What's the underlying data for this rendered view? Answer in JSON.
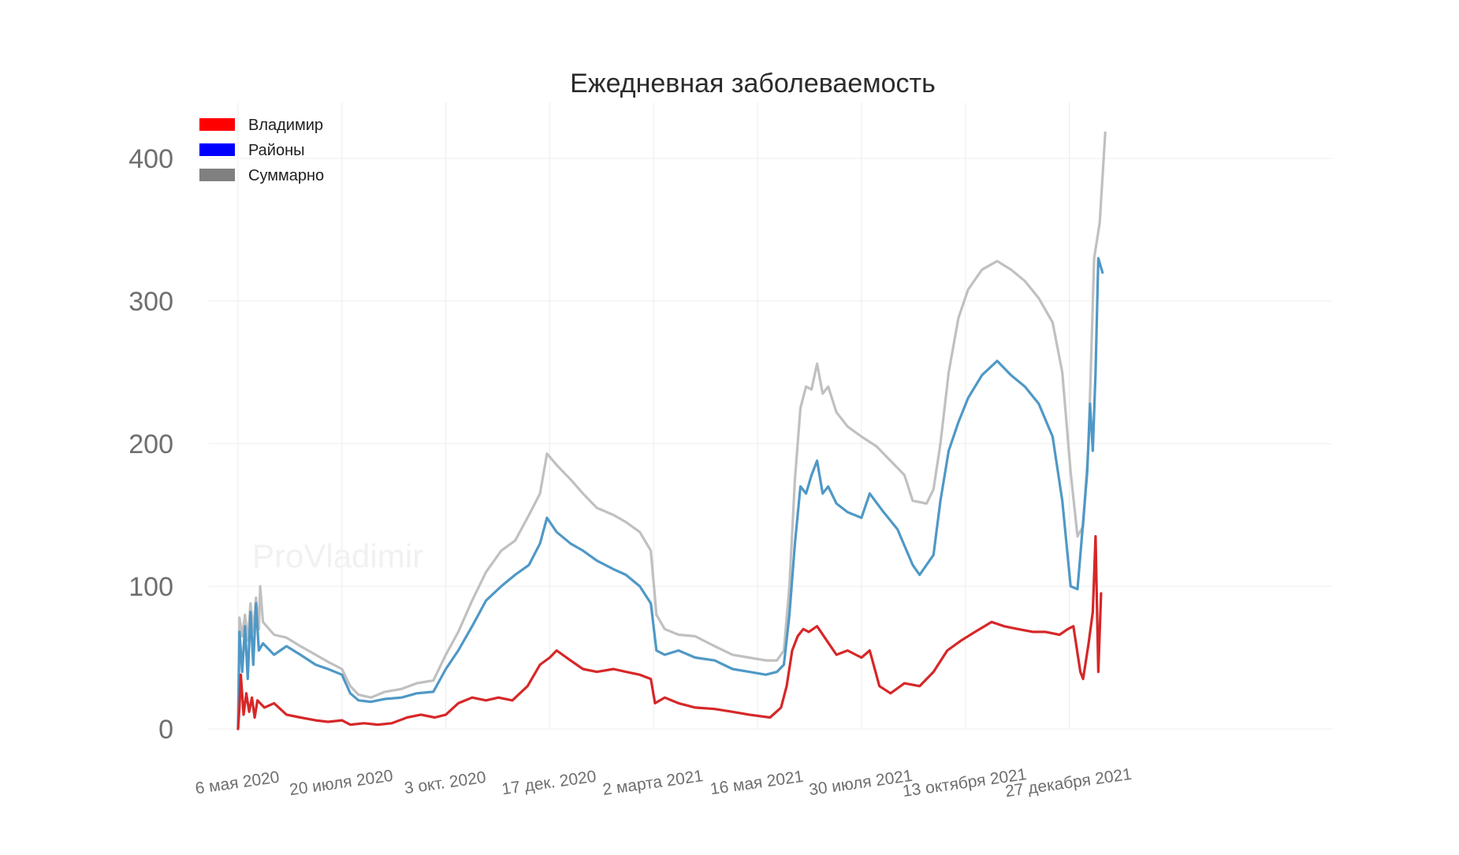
{
  "chart_data": {
    "type": "line",
    "title": "Ежедневная заболеваемость",
    "watermark": "ProVladimir",
    "xlabel": "",
    "ylabel": "",
    "ylim": [
      0,
      420
    ],
    "yticks": [
      0,
      100,
      200,
      300,
      400
    ],
    "xlim": [
      "2020-05-06",
      "2022-01-24"
    ],
    "xticks": [
      {
        "date": "2020-05-06",
        "label": "6 мая 2020"
      },
      {
        "date": "2020-07-20",
        "label": "20 июля 2020"
      },
      {
        "date": "2020-10-03",
        "label": "3 окт. 2020"
      },
      {
        "date": "2020-12-17",
        "label": "17 дек. 2020"
      },
      {
        "date": "2021-03-02",
        "label": "2 марта 2021"
      },
      {
        "date": "2021-05-16",
        "label": "16 мая 2021"
      },
      {
        "date": "2021-07-30",
        "label": "30 июля 2021"
      },
      {
        "date": "2021-10-13",
        "label": "13 октября 2021"
      },
      {
        "date": "2021-12-27",
        "label": "27 декабря 2021"
      }
    ],
    "grid": true,
    "legend_position": "top-left",
    "legend": [
      {
        "name": "Владимир",
        "swatch_color": "#ff0000"
      },
      {
        "name": "Районы",
        "swatch_color": "#0000ff"
      },
      {
        "name": "Суммарно",
        "swatch_color": "#808080"
      }
    ],
    "series": [
      {
        "name": "Суммарно",
        "color": "#c0c0c0",
        "points": [
          [
            "2020-05-06",
            0
          ],
          [
            "2020-05-07",
            78
          ],
          [
            "2020-05-09",
            65
          ],
          [
            "2020-05-11",
            80
          ],
          [
            "2020-05-13",
            62
          ],
          [
            "2020-05-15",
            88
          ],
          [
            "2020-05-17",
            68
          ],
          [
            "2020-05-19",
            92
          ],
          [
            "2020-05-21",
            70
          ],
          [
            "2020-05-22",
            100
          ],
          [
            "2020-05-24",
            75
          ],
          [
            "2020-06-01",
            66
          ],
          [
            "2020-06-10",
            64
          ],
          [
            "2020-06-20",
            58
          ],
          [
            "2020-07-01",
            52
          ],
          [
            "2020-07-10",
            47
          ],
          [
            "2020-07-20",
            42
          ],
          [
            "2020-07-26",
            30
          ],
          [
            "2020-08-01",
            24
          ],
          [
            "2020-08-10",
            22
          ],
          [
            "2020-08-20",
            26
          ],
          [
            "2020-09-01",
            28
          ],
          [
            "2020-09-12",
            32
          ],
          [
            "2020-09-24",
            34
          ],
          [
            "2020-10-03",
            52
          ],
          [
            "2020-10-12",
            68
          ],
          [
            "2020-10-22",
            90
          ],
          [
            "2020-11-01",
            110
          ],
          [
            "2020-11-12",
            125
          ],
          [
            "2020-11-22",
            132
          ],
          [
            "2020-12-02",
            150
          ],
          [
            "2020-12-10",
            165
          ],
          [
            "2020-12-15",
            193
          ],
          [
            "2020-12-22",
            185
          ],
          [
            "2021-01-01",
            175
          ],
          [
            "2021-01-10",
            165
          ],
          [
            "2021-01-20",
            155
          ],
          [
            "2021-02-01",
            150
          ],
          [
            "2021-02-10",
            145
          ],
          [
            "2021-02-20",
            138
          ],
          [
            "2021-02-28",
            125
          ],
          [
            "2021-03-04",
            80
          ],
          [
            "2021-03-10",
            70
          ],
          [
            "2021-03-20",
            66
          ],
          [
            "2021-04-01",
            65
          ],
          [
            "2021-04-15",
            58
          ],
          [
            "2021-04-28",
            52
          ],
          [
            "2021-05-10",
            50
          ],
          [
            "2021-05-22",
            48
          ],
          [
            "2021-05-30",
            48
          ],
          [
            "2021-06-04",
            55
          ],
          [
            "2021-06-08",
            100
          ],
          [
            "2021-06-12",
            175
          ],
          [
            "2021-06-16",
            225
          ],
          [
            "2021-06-20",
            240
          ],
          [
            "2021-06-24",
            238
          ],
          [
            "2021-06-28",
            256
          ],
          [
            "2021-07-02",
            235
          ],
          [
            "2021-07-06",
            240
          ],
          [
            "2021-07-12",
            222
          ],
          [
            "2021-07-20",
            212
          ],
          [
            "2021-07-30",
            205
          ],
          [
            "2021-08-10",
            198
          ],
          [
            "2021-08-20",
            188
          ],
          [
            "2021-08-30",
            178
          ],
          [
            "2021-09-05",
            160
          ],
          [
            "2021-09-15",
            158
          ],
          [
            "2021-09-20",
            168
          ],
          [
            "2021-09-25",
            200
          ],
          [
            "2021-10-01",
            250
          ],
          [
            "2021-10-08",
            288
          ],
          [
            "2021-10-15",
            308
          ],
          [
            "2021-10-25",
            322
          ],
          [
            "2021-11-05",
            328
          ],
          [
            "2021-11-15",
            322
          ],
          [
            "2021-11-25",
            314
          ],
          [
            "2021-12-05",
            302
          ],
          [
            "2021-12-15",
            285
          ],
          [
            "2021-12-22",
            250
          ],
          [
            "2021-12-28",
            180
          ],
          [
            "2022-01-02",
            135
          ],
          [
            "2022-01-06",
            142
          ],
          [
            "2022-01-10",
            200
          ],
          [
            "2022-01-14",
            330
          ],
          [
            "2022-01-18",
            355
          ],
          [
            "2022-01-22",
            418
          ]
        ]
      },
      {
        "name": "Районы",
        "color": "#4f98c6",
        "points": [
          [
            "2020-05-06",
            0
          ],
          [
            "2020-05-07",
            68
          ],
          [
            "2020-05-09",
            40
          ],
          [
            "2020-05-11",
            72
          ],
          [
            "2020-05-13",
            35
          ],
          [
            "2020-05-15",
            82
          ],
          [
            "2020-05-17",
            45
          ],
          [
            "2020-05-19",
            88
          ],
          [
            "2020-05-21",
            55
          ],
          [
            "2020-05-24",
            60
          ],
          [
            "2020-06-01",
            52
          ],
          [
            "2020-06-10",
            58
          ],
          [
            "2020-06-20",
            52
          ],
          [
            "2020-07-01",
            45
          ],
          [
            "2020-07-10",
            42
          ],
          [
            "2020-07-20",
            38
          ],
          [
            "2020-07-26",
            25
          ],
          [
            "2020-08-01",
            20
          ],
          [
            "2020-08-10",
            19
          ],
          [
            "2020-08-20",
            21
          ],
          [
            "2020-09-01",
            22
          ],
          [
            "2020-09-12",
            25
          ],
          [
            "2020-09-24",
            26
          ],
          [
            "2020-10-03",
            42
          ],
          [
            "2020-10-12",
            55
          ],
          [
            "2020-10-22",
            72
          ],
          [
            "2020-11-01",
            90
          ],
          [
            "2020-11-12",
            100
          ],
          [
            "2020-11-22",
            108
          ],
          [
            "2020-12-02",
            115
          ],
          [
            "2020-12-10",
            130
          ],
          [
            "2020-12-15",
            148
          ],
          [
            "2020-12-22",
            138
          ],
          [
            "2021-01-01",
            130
          ],
          [
            "2021-01-10",
            125
          ],
          [
            "2021-01-20",
            118
          ],
          [
            "2021-02-01",
            112
          ],
          [
            "2021-02-10",
            108
          ],
          [
            "2021-02-20",
            100
          ],
          [
            "2021-02-28",
            88
          ],
          [
            "2021-03-04",
            55
          ],
          [
            "2021-03-10",
            52
          ],
          [
            "2021-03-20",
            55
          ],
          [
            "2021-04-01",
            50
          ],
          [
            "2021-04-15",
            48
          ],
          [
            "2021-04-28",
            42
          ],
          [
            "2021-05-10",
            40
          ],
          [
            "2021-05-22",
            38
          ],
          [
            "2021-05-30",
            40
          ],
          [
            "2021-06-04",
            45
          ],
          [
            "2021-06-08",
            80
          ],
          [
            "2021-06-12",
            130
          ],
          [
            "2021-06-16",
            170
          ],
          [
            "2021-06-20",
            165
          ],
          [
            "2021-06-24",
            178
          ],
          [
            "2021-06-28",
            188
          ],
          [
            "2021-07-02",
            165
          ],
          [
            "2021-07-06",
            170
          ],
          [
            "2021-07-12",
            158
          ],
          [
            "2021-07-20",
            152
          ],
          [
            "2021-07-30",
            148
          ],
          [
            "2021-08-05",
            165
          ],
          [
            "2021-08-15",
            152
          ],
          [
            "2021-08-25",
            140
          ],
          [
            "2021-09-05",
            115
          ],
          [
            "2021-09-10",
            108
          ],
          [
            "2021-09-20",
            122
          ],
          [
            "2021-09-25",
            160
          ],
          [
            "2021-10-01",
            195
          ],
          [
            "2021-10-08",
            215
          ],
          [
            "2021-10-15",
            232
          ],
          [
            "2021-10-25",
            248
          ],
          [
            "2021-11-05",
            258
          ],
          [
            "2021-11-15",
            248
          ],
          [
            "2021-11-25",
            240
          ],
          [
            "2021-12-05",
            228
          ],
          [
            "2021-12-15",
            205
          ],
          [
            "2021-12-22",
            160
          ],
          [
            "2021-12-28",
            100
          ],
          [
            "2022-01-02",
            98
          ],
          [
            "2022-01-06",
            145
          ],
          [
            "2022-01-09",
            180
          ],
          [
            "2022-01-11",
            228
          ],
          [
            "2022-01-13",
            195
          ],
          [
            "2022-01-15",
            250
          ],
          [
            "2022-01-17",
            330
          ],
          [
            "2022-01-20",
            320
          ]
        ]
      },
      {
        "name": "Владимир",
        "color": "#d62728",
        "points": [
          [
            "2020-05-06",
            0
          ],
          [
            "2020-05-07",
            15
          ],
          [
            "2020-05-08",
            38
          ],
          [
            "2020-05-10",
            10
          ],
          [
            "2020-05-12",
            25
          ],
          [
            "2020-05-14",
            12
          ],
          [
            "2020-05-16",
            22
          ],
          [
            "2020-05-18",
            8
          ],
          [
            "2020-05-20",
            20
          ],
          [
            "2020-05-25",
            15
          ],
          [
            "2020-06-01",
            18
          ],
          [
            "2020-06-10",
            10
          ],
          [
            "2020-06-20",
            8
          ],
          [
            "2020-07-01",
            6
          ],
          [
            "2020-07-10",
            5
          ],
          [
            "2020-07-20",
            6
          ],
          [
            "2020-07-26",
            3
          ],
          [
            "2020-08-05",
            4
          ],
          [
            "2020-08-15",
            3
          ],
          [
            "2020-08-25",
            4
          ],
          [
            "2020-09-05",
            8
          ],
          [
            "2020-09-15",
            10
          ],
          [
            "2020-09-25",
            8
          ],
          [
            "2020-10-03",
            10
          ],
          [
            "2020-10-12",
            18
          ],
          [
            "2020-10-22",
            22
          ],
          [
            "2020-11-01",
            20
          ],
          [
            "2020-11-10",
            22
          ],
          [
            "2020-11-20",
            20
          ],
          [
            "2020-12-01",
            30
          ],
          [
            "2020-12-10",
            45
          ],
          [
            "2020-12-17",
            50
          ],
          [
            "2020-12-22",
            55
          ],
          [
            "2021-01-01",
            48
          ],
          [
            "2021-01-10",
            42
          ],
          [
            "2021-01-20",
            40
          ],
          [
            "2021-02-01",
            42
          ],
          [
            "2021-02-10",
            40
          ],
          [
            "2021-02-20",
            38
          ],
          [
            "2021-02-28",
            35
          ],
          [
            "2021-03-03",
            18
          ],
          [
            "2021-03-10",
            22
          ],
          [
            "2021-03-20",
            18
          ],
          [
            "2021-04-01",
            15
          ],
          [
            "2021-04-15",
            14
          ],
          [
            "2021-04-28",
            12
          ],
          [
            "2021-05-10",
            10
          ],
          [
            "2021-05-25",
            8
          ],
          [
            "2021-06-02",
            15
          ],
          [
            "2021-06-06",
            30
          ],
          [
            "2021-06-10",
            55
          ],
          [
            "2021-06-14",
            65
          ],
          [
            "2021-06-18",
            70
          ],
          [
            "2021-06-22",
            68
          ],
          [
            "2021-06-28",
            72
          ],
          [
            "2021-07-05",
            62
          ],
          [
            "2021-07-12",
            52
          ],
          [
            "2021-07-20",
            55
          ],
          [
            "2021-07-30",
            50
          ],
          [
            "2021-08-05",
            55
          ],
          [
            "2021-08-12",
            30
          ],
          [
            "2021-08-20",
            25
          ],
          [
            "2021-08-30",
            32
          ],
          [
            "2021-09-10",
            30
          ],
          [
            "2021-09-20",
            40
          ],
          [
            "2021-09-30",
            55
          ],
          [
            "2021-10-10",
            62
          ],
          [
            "2021-10-20",
            68
          ],
          [
            "2021-11-01",
            75
          ],
          [
            "2021-11-10",
            72
          ],
          [
            "2021-11-20",
            70
          ],
          [
            "2021-12-01",
            68
          ],
          [
            "2021-12-10",
            68
          ],
          [
            "2021-12-20",
            66
          ],
          [
            "2021-12-26",
            70
          ],
          [
            "2021-12-30",
            72
          ],
          [
            "2022-01-04",
            40
          ],
          [
            "2022-01-06",
            35
          ],
          [
            "2022-01-10",
            60
          ],
          [
            "2022-01-13",
            82
          ],
          [
            "2022-01-15",
            135
          ],
          [
            "2022-01-17",
            40
          ],
          [
            "2022-01-19",
            95
          ]
        ]
      }
    ]
  }
}
